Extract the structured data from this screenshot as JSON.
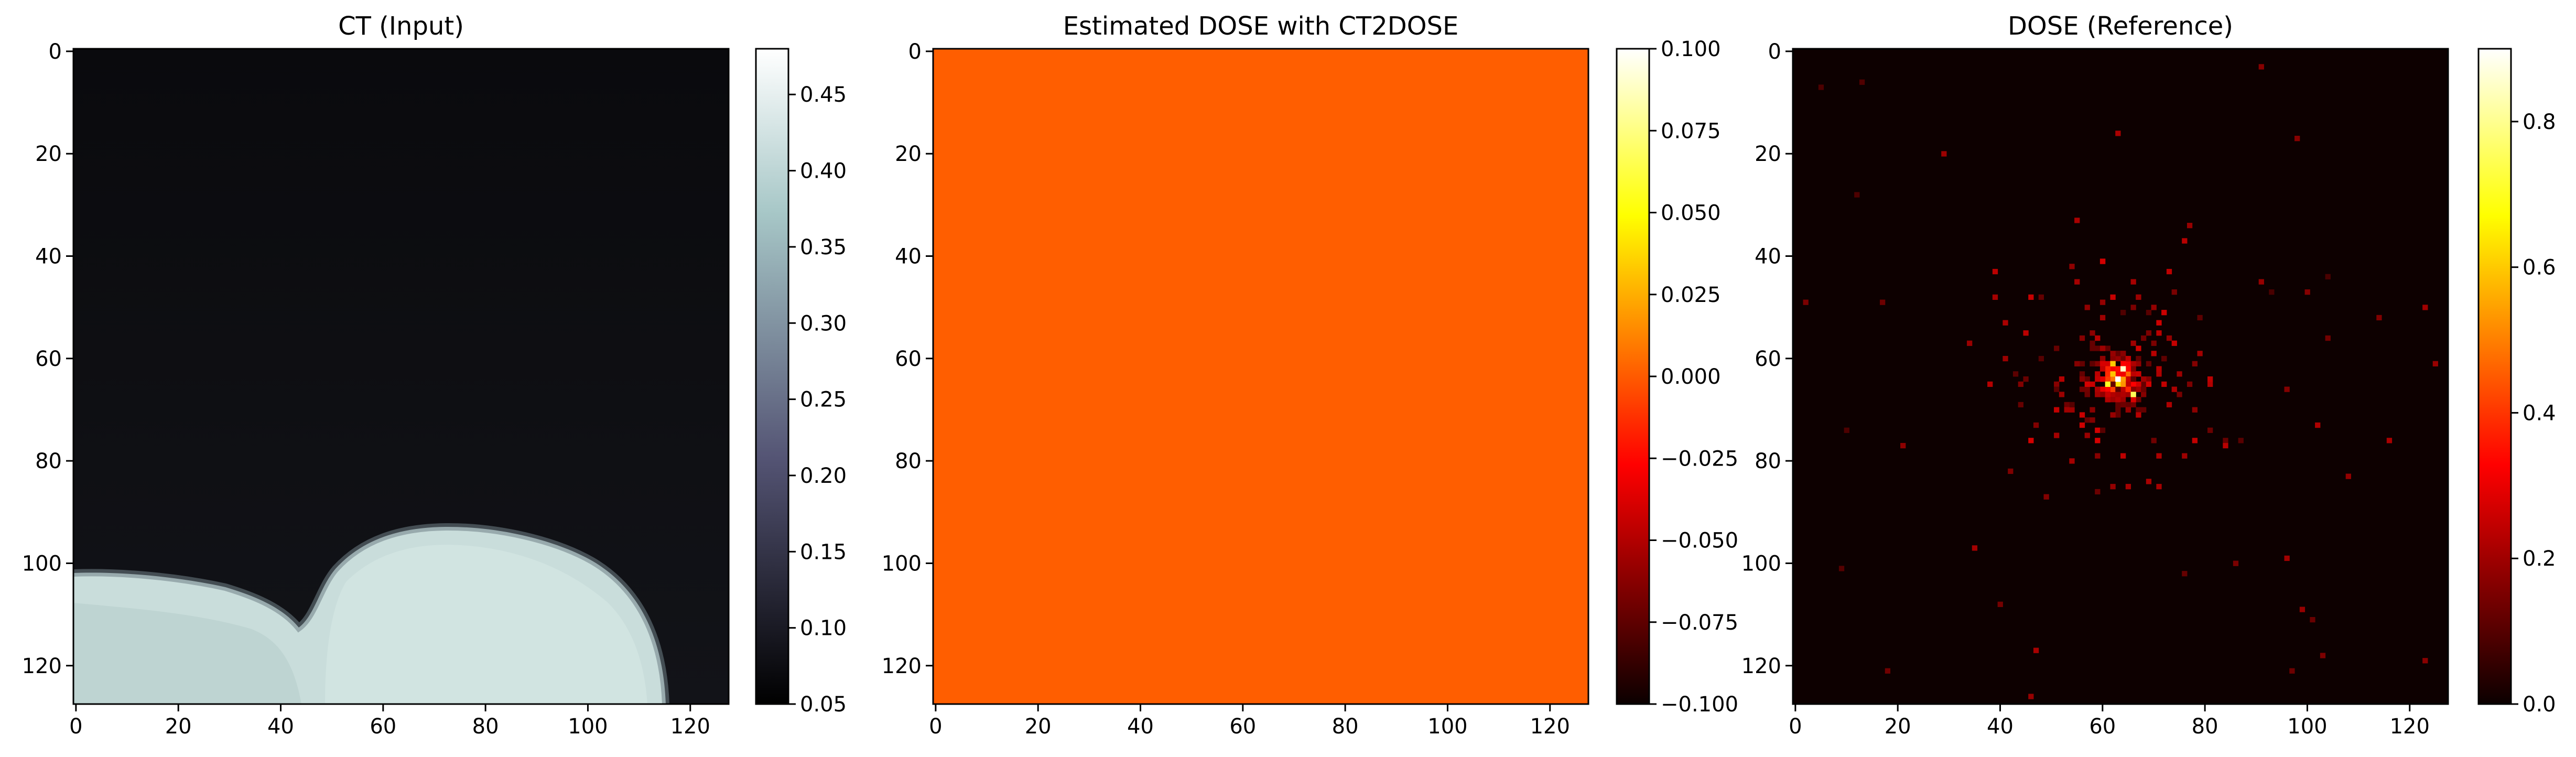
{
  "chart_data": [
    {
      "type": "heatmap",
      "title": "CT (Input)",
      "xlabel": "",
      "ylabel": "",
      "xlim": [
        0,
        127
      ],
      "ylim": [
        127,
        0
      ],
      "xticks": [
        "0",
        "20",
        "40",
        "60",
        "80",
        "100",
        "120"
      ],
      "yticks": [
        "0",
        "20",
        "40",
        "60",
        "80",
        "100",
        "120"
      ],
      "colormap": "bone",
      "colorbar": {
        "min": 0.05,
        "max": 0.48,
        "ticks": [
          "0.05",
          "0.10",
          "0.15",
          "0.20",
          "0.25",
          "0.30",
          "0.35",
          "0.40",
          "0.45"
        ]
      },
      "description_values": {
        "background_level": 0.055,
        "body_level": 0.43
      },
      "grid": false
    },
    {
      "type": "heatmap",
      "title": "Estimated DOSE with CT2DOSE",
      "xlabel": "",
      "ylabel": "",
      "xlim": [
        0,
        127
      ],
      "ylim": [
        127,
        0
      ],
      "xticks": [
        "0",
        "20",
        "40",
        "60",
        "80",
        "100",
        "120"
      ],
      "yticks": [
        "0",
        "20",
        "40",
        "60",
        "80",
        "100",
        "120"
      ],
      "colormap": "hot",
      "uniform_value": 0.0,
      "uniform_color": "#ff5e00",
      "colorbar": {
        "min": -0.1,
        "max": 0.1,
        "ticks": [
          "0.100",
          "0.075",
          "0.050",
          "0.025",
          "0.000",
          "−0.025",
          "−0.050",
          "−0.075",
          "−0.100"
        ]
      },
      "grid": false
    },
    {
      "type": "heatmap",
      "title": "DOSE (Reference)",
      "xlabel": "",
      "ylabel": "",
      "xlim": [
        0,
        127
      ],
      "ylim": [
        127,
        0
      ],
      "xticks": [
        "0",
        "20",
        "40",
        "60",
        "80",
        "100",
        "120"
      ],
      "yticks": [
        "0",
        "20",
        "40",
        "60",
        "80",
        "100",
        "120"
      ],
      "colormap": "hot",
      "background_color": "#0d0000",
      "colorbar": {
        "min": 0.0,
        "max": 0.9,
        "ticks": [
          "0.0",
          "0.2",
          "0.4",
          "0.6",
          "0.8"
        ]
      },
      "hotspot_center": [
        63,
        64
      ],
      "peak_value": 0.9,
      "grid": false
    }
  ]
}
